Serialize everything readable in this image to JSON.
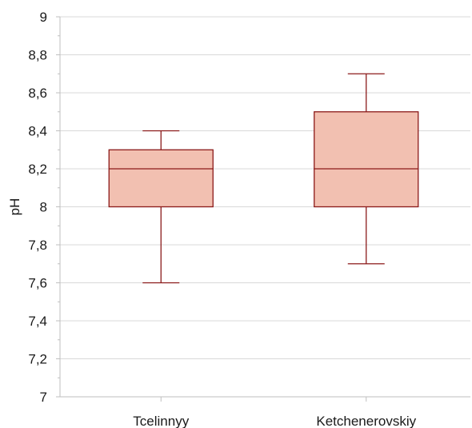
{
  "chart_data": {
    "type": "box",
    "ylabel": "pH",
    "xlabel": "",
    "ylim": [
      7,
      9
    ],
    "y_ticks": [
      "7",
      "7,2",
      "7,4",
      "7,6",
      "7,8",
      "8",
      "8,2",
      "8,4",
      "8,6",
      "8,8",
      "9"
    ],
    "y_tick_values": [
      7,
      7.2,
      7.4,
      7.6,
      7.8,
      8,
      8.2,
      8.4,
      8.6,
      8.8,
      9
    ],
    "grid": true,
    "categories": [
      "Tcelinnyy",
      "Ketchenerovskiy"
    ],
    "boxes": [
      {
        "category": "Tcelinnyy",
        "min": 7.6,
        "q1": 8.0,
        "median": 8.2,
        "q3": 8.3,
        "max": 8.4
      },
      {
        "category": "Ketchenerovskiy",
        "min": 7.7,
        "q1": 8.0,
        "median": 8.2,
        "q3": 8.5,
        "max": 8.7
      }
    ],
    "colors": {
      "box_fill": "#f2c0b1",
      "box_stroke": "#8b1a1a",
      "grid": "#d9d9d9"
    }
  }
}
